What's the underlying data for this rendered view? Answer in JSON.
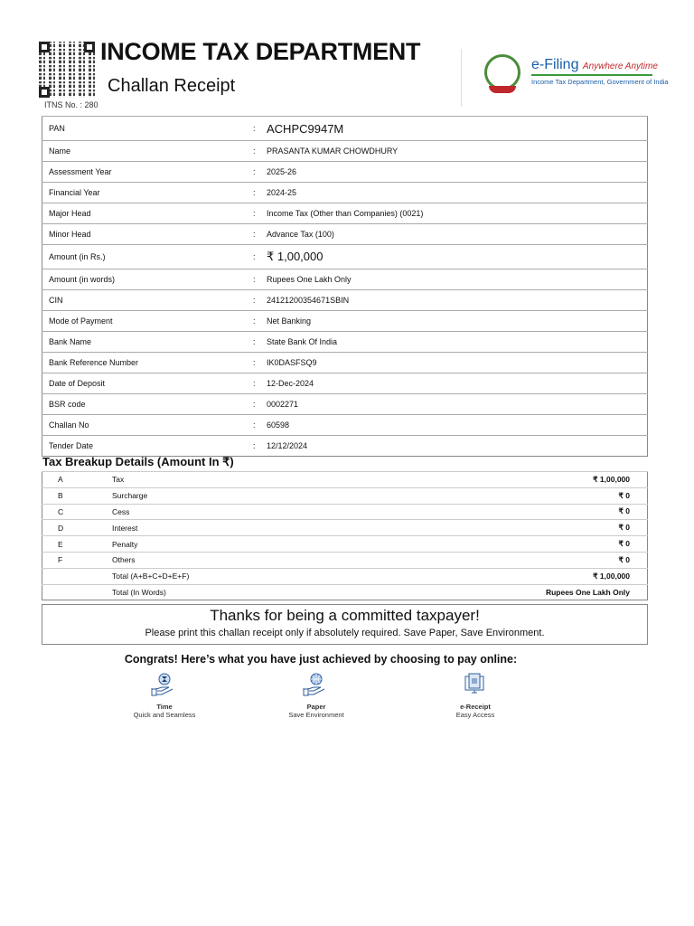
{
  "header": {
    "title": "INCOME TAX DEPARTMENT",
    "subtitle": "Challan Receipt",
    "itns": "ITNS No. : 280",
    "efiling": "e-Filing",
    "tagline": "Anywhere Anytime",
    "efiling_sub": "Income Tax Department, Government of India"
  },
  "details": [
    {
      "label": "PAN",
      "value": "ACHPC9947M",
      "big": true
    },
    {
      "label": "Name",
      "value": "PRASANTA KUMAR CHOWDHURY"
    },
    {
      "label": "Assessment Year",
      "value": "2025-26"
    },
    {
      "label": "Financial Year",
      "value": "2024-25"
    },
    {
      "label": "Major Head",
      "value": "Income Tax (Other than Companies) (0021)"
    },
    {
      "label": "Minor Head",
      "value": "Advance Tax (100)"
    },
    {
      "label": "Amount (in Rs.)",
      "value": "₹ 1,00,000",
      "big": true
    },
    {
      "label": "Amount (in words)",
      "value": "Rupees One Lakh Only"
    },
    {
      "label": "CIN",
      "value": "24121200354671SBIN"
    },
    {
      "label": "Mode of Payment",
      "value": "Net Banking"
    },
    {
      "label": "Bank Name",
      "value": "State Bank Of India"
    },
    {
      "label": "Bank Reference Number",
      "value": "IK0DASFSQ9"
    },
    {
      "label": "Date of Deposit",
      "value": "12-Dec-2024"
    },
    {
      "label": "BSR code",
      "value": "0002271"
    },
    {
      "label": "Challan No",
      "value": "60598"
    },
    {
      "label": "Tender Date",
      "value": "12/12/2024"
    }
  ],
  "colon": ":",
  "breakup": {
    "title": "Tax Breakup Details (Amount In ₹)",
    "rows": [
      {
        "code": "A",
        "label": "Tax",
        "amount": "₹ 1,00,000"
      },
      {
        "code": "B",
        "label": "Surcharge",
        "amount": "₹ 0"
      },
      {
        "code": "C",
        "label": "Cess",
        "amount": "₹ 0"
      },
      {
        "code": "D",
        "label": "Interest",
        "amount": "₹ 0"
      },
      {
        "code": "E",
        "label": "Penalty",
        "amount": "₹ 0"
      },
      {
        "code": "F",
        "label": "Others",
        "amount": "₹ 0"
      },
      {
        "code": "",
        "label": "Total (A+B+C+D+E+F)",
        "amount": "₹ 1,00,000"
      },
      {
        "code": "",
        "label": "Total (In Words)",
        "amount": "Rupees One Lakh Only"
      }
    ]
  },
  "thanks": {
    "title": "Thanks for being a committed taxpayer!",
    "note": "Please print this challan receipt only if absolutely required. Save Paper, Save Environment."
  },
  "congrats": "Congrats! Here’s what you have just achieved by choosing to pay online:",
  "features": [
    {
      "icon": "hourglass-hand-icon",
      "title": "Time",
      "sub": "Quick and Seamless"
    },
    {
      "icon": "globe-hand-icon",
      "title": "Paper",
      "sub": "Save Environment"
    },
    {
      "icon": "receipt-monitor-icon",
      "title": "e-Receipt",
      "sub": "Easy Access"
    }
  ]
}
